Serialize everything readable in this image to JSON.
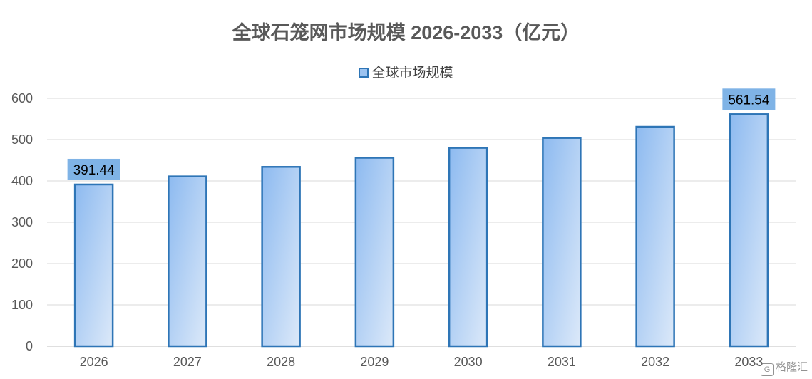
{
  "chart_data": {
    "type": "bar",
    "title": "全球石笼网市场规模 2026-2033（亿元）",
    "legend": {
      "position": "top",
      "entries": [
        "全球市场规模"
      ]
    },
    "categories": [
      "2026",
      "2027",
      "2028",
      "2029",
      "2030",
      "2031",
      "2032",
      "2033"
    ],
    "series": [
      {
        "name": "全球市场规模",
        "values": [
          391.44,
          411,
          434,
          456,
          480,
          504,
          531,
          561.54
        ]
      }
    ],
    "data_labels": [
      {
        "category": "2026",
        "text": "391.44"
      },
      {
        "category": "2033",
        "text": "561.54"
      }
    ],
    "y_ticks": [
      "0",
      "100",
      "200",
      "300",
      "400",
      "500",
      "600"
    ],
    "ylim": [
      0,
      600
    ],
    "grid": true,
    "colors": {
      "bar_fill_top": "#8dbaf0",
      "bar_fill_bottom": "#dce9f9",
      "bar_border": "#2e75b6",
      "label_box": "#7fb3e6"
    }
  },
  "watermark": {
    "text": "格隆汇",
    "logo": "G"
  }
}
